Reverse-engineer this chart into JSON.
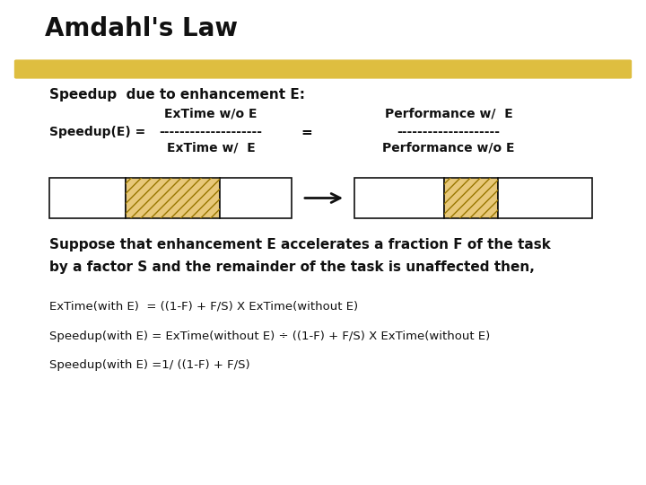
{
  "title": "Amdahl's Law",
  "highlight_color": "#D4A800",
  "bg_color": "#FFFFFF",
  "title_fontsize": 20,
  "subtitle_fontsize": 11,
  "body_fontsize": 10,
  "formula_fontsize": 9.5,
  "suppose_fontsize": 11,
  "line1": "Speedup  due to enhancement E:",
  "extime_wo": "ExTime w/o E",
  "performance_w": "Performance w/  E",
  "speedup_label": "Speedup(E) = ",
  "dashes1": "--------------------",
  "equals": "=",
  "dashes2": "--------------------",
  "extime_w": "ExTime w/  E",
  "performance_wo": "Performance w/o E",
  "suppose_line1": "Suppose that enhancement E accelerates a fraction F of the task",
  "suppose_line2": "by a factor S and the remainder of the task is unaffected then,",
  "eq1": "ExTime(with E)  = ((1-F) + F/S) X ExTime(without E)",
  "eq2": "Speedup(with E) = ExTime(without E) ÷ ((1-F) + F/S) X ExTime(without E)",
  "eq3": "Speedup(with E) =1/ ((1-F) + F/S)",
  "hatch_color": "#E8C87A",
  "box_edge_color": "#111111",
  "box_fill": "#FFFFFF",
  "arrow_color": "#111111"
}
